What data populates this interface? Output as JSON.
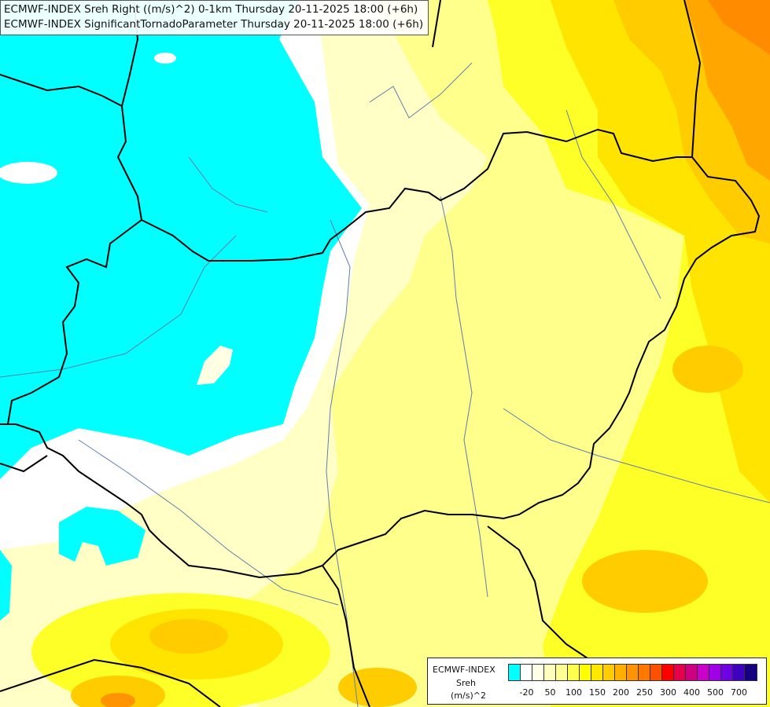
{
  "header": {
    "line1": "ECMWF-INDEX Sreh Right ((m/s)^2) 0-1km Thursday 20-11-2025 18:00 (+6h)",
    "line2": "ECMWF-INDEX SignificantTornadoParameter Thursday 20-11-2025 18:00 (+6h)"
  },
  "legend": {
    "name": "ECMWF-INDEX",
    "variable": "Sreh",
    "unit": "(m/s)^2",
    "colors": [
      "#00ffff",
      "#ffffff",
      "#ffffe8",
      "#ffffc0",
      "#ffff96",
      "#ffff50",
      "#ffff00",
      "#ffe800",
      "#ffcc00",
      "#ffb000",
      "#ff9400",
      "#ff7800",
      "#ff5000",
      "#ff0000",
      "#e6004c",
      "#cc0080",
      "#cc00cc",
      "#a000e6",
      "#7000e6",
      "#4000c0",
      "#140080"
    ],
    "ticks": [
      {
        "label": "-20",
        "index": 1
      },
      {
        "label": "50",
        "index": 3
      },
      {
        "label": "100",
        "index": 5
      },
      {
        "label": "150",
        "index": 7
      },
      {
        "label": "200",
        "index": 9
      },
      {
        "label": "250",
        "index": 11
      },
      {
        "label": "300",
        "index": 13
      },
      {
        "label": "400",
        "index": 15
      },
      {
        "label": "500",
        "index": 17
      },
      {
        "label": "700",
        "index": 19
      }
    ]
  }
}
